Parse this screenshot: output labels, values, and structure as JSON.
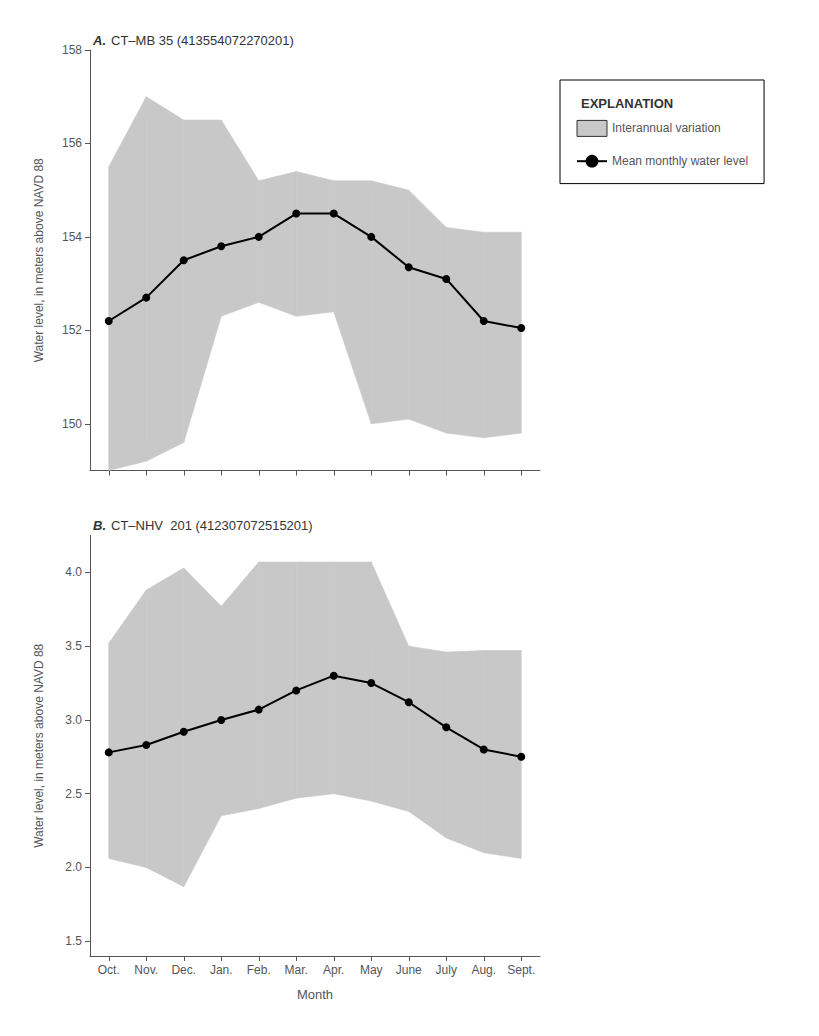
{
  "chart_data": [
    {
      "type": "line",
      "title": "CT–MB 35 (413554072270201)",
      "annotations": [
        "A."
      ],
      "categories": [
        "Oct.",
        "Nov.",
        "Dec.",
        "Jan.",
        "Feb.",
        "Mar.",
        "Apr.",
        "May",
        "June",
        "July",
        "Aug.",
        "Sept."
      ],
      "ylabel": "Water level, in meters above NAVD 88",
      "ylim": [
        149.0,
        158.0
      ],
      "yticks": [
        150,
        152,
        154,
        156,
        158
      ],
      "grid": false,
      "tick_labels": "y",
      "legend": "right",
      "legend_title": "EXPLANATION",
      "series": [
        {
          "name": "Interannual variation",
          "type": "band",
          "color": "#c8c8c8",
          "lower": [
            149.0,
            149.2,
            149.6,
            152.3,
            152.6,
            152.3,
            152.4,
            150.0,
            150.1,
            149.8,
            149.7,
            149.8
          ],
          "upper": [
            155.5,
            157.0,
            156.5,
            156.5,
            155.2,
            155.4,
            155.2,
            155.2,
            155.0,
            154.2,
            154.1,
            154.1
          ]
        },
        {
          "name": "Mean monthly water level",
          "type": "line",
          "color": "#000000",
          "marker": "circle",
          "values": [
            152.2,
            152.7,
            153.5,
            153.8,
            154.0,
            154.5,
            154.5,
            154.0,
            153.35,
            153.1,
            152.2,
            152.05
          ]
        }
      ]
    },
    {
      "type": "line",
      "title": "CT–NHV  201 (412307072515201)",
      "annotations": [
        "B."
      ],
      "categories": [
        "Oct.",
        "Nov.",
        "Dec.",
        "Jan.",
        "Feb.",
        "Mar.",
        "Apr.",
        "May",
        "June",
        "July",
        "Aug.",
        "Sept."
      ],
      "xlabel": "Month",
      "ylabel": "Water level, in meters above NAVD 88",
      "ylim": [
        1.4,
        4.25
      ],
      "yticks": [
        1.5,
        {
          "value": 2.0,
          "label": "2.0"
        },
        2.5,
        {
          "value": 3.0,
          "label": "3.0"
        },
        3.5,
        {
          "value": 4.0,
          "label": "4.0"
        }
      ],
      "grid": false,
      "series": [
        {
          "name": "Interannual variation",
          "type": "band",
          "color": "#c8c8c8",
          "lower": [
            2.06,
            2.0,
            1.87,
            2.35,
            2.4,
            2.47,
            2.5,
            2.45,
            2.38,
            2.2,
            2.1,
            2.06
          ],
          "upper": [
            3.52,
            3.88,
            4.03,
            3.77,
            4.07,
            4.07,
            4.07,
            4.07,
            3.5,
            3.46,
            3.47,
            3.47
          ]
        },
        {
          "name": "Mean monthly water level",
          "type": "line",
          "color": "#000000",
          "marker": "circle",
          "values": [
            2.78,
            2.83,
            2.92,
            3.0,
            3.07,
            3.2,
            3.3,
            3.25,
            3.12,
            2.95,
            2.8,
            2.75
          ]
        }
      ]
    }
  ]
}
